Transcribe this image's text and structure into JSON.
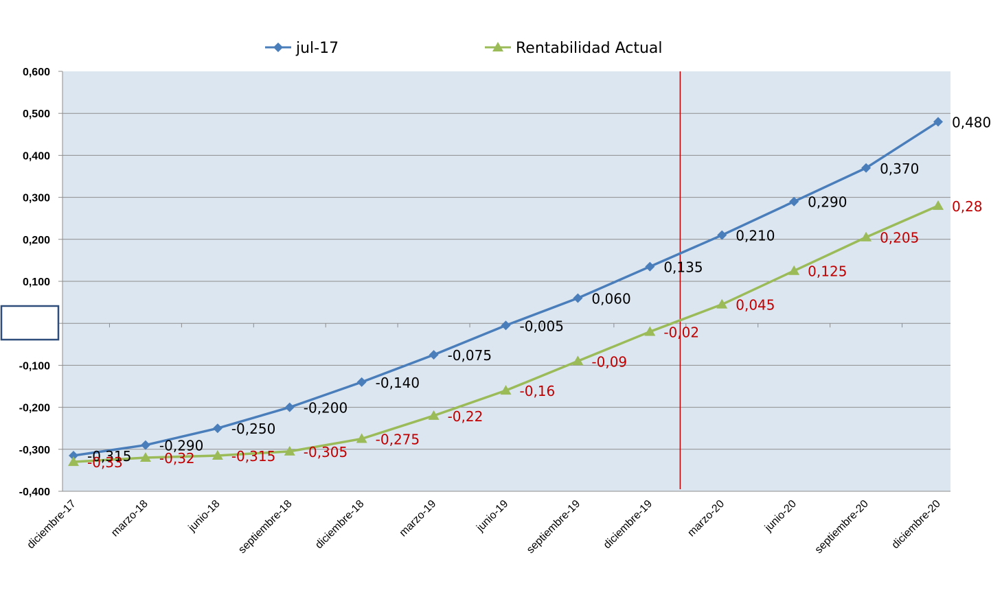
{
  "chart_data": {
    "type": "line",
    "categories": [
      "diciembre-17",
      "marzo-18",
      "junio-18",
      "septiembre-18",
      "diciembre-18",
      "marzo-19",
      "junio-19",
      "septiembre-19",
      "diciembre-19",
      "marzo-20",
      "junio-20",
      "septiembre-20",
      "diciembre-20"
    ],
    "ylim": [
      -0.4,
      0.6
    ],
    "yticks": [
      "0,600",
      "0,500",
      "0,400",
      "0,300",
      "0,200",
      "0,100",
      "",
      "-0,100",
      "-0,200",
      "-0,300",
      "-0,400"
    ],
    "grid": true,
    "legend_position": "top",
    "marker_line_after_category": "diciembre-19",
    "colors": {
      "plot_bg": "#dce6f1",
      "grid": "#8c8c8c",
      "marker_line": "#c00000",
      "series1": "#4a7ebb",
      "series2": "#9bbb59",
      "label1": "#000000",
      "label2": "#c00000"
    },
    "series": [
      {
        "name": "jul-17",
        "marker": "diamond",
        "values": [
          -0.315,
          -0.29,
          -0.25,
          -0.2,
          -0.14,
          -0.075,
          -0.005,
          0.06,
          0.135,
          0.21,
          0.29,
          0.37,
          0.48
        ],
        "labels": [
          "-0,315",
          "-0,290",
          "-0,250",
          "-0,200",
          "-0,140",
          "-0,075",
          "-0,005",
          "0,060",
          "0,135",
          "0,210",
          "0,290",
          "0,370",
          "0,480"
        ]
      },
      {
        "name": "Rentabilidad Actual",
        "marker": "triangle",
        "values": [
          -0.33,
          -0.32,
          -0.315,
          -0.305,
          -0.275,
          -0.22,
          -0.16,
          -0.09,
          -0.02,
          0.045,
          0.125,
          0.205,
          0.28
        ],
        "labels": [
          "-0,33",
          "-0,32",
          "-0,315",
          "-0,305",
          "-0,275",
          "-0,22",
          "-0,16",
          "-0,09",
          "-0,02",
          "0,045",
          "0,125",
          "0,205",
          "0,28"
        ]
      }
    ]
  }
}
